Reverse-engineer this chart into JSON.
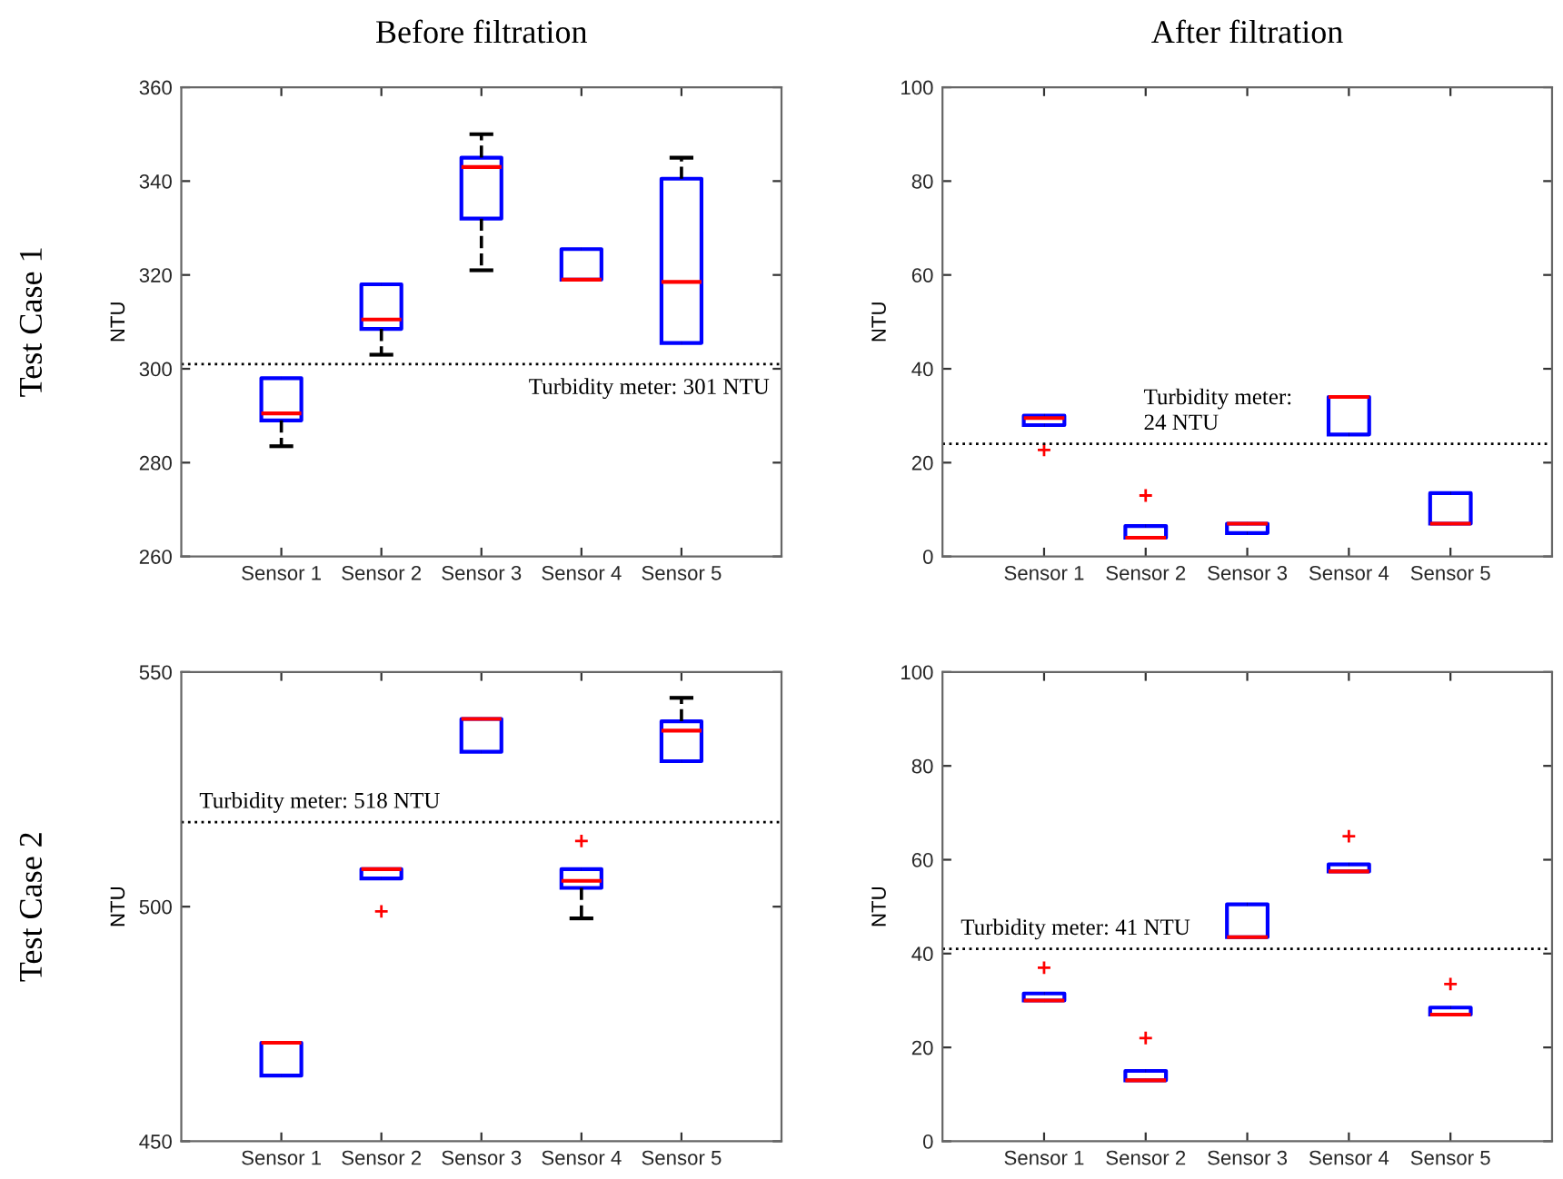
{
  "chart_data": [
    {
      "type": "box",
      "title": "Before filtration",
      "ylabel": "NTU",
      "annotations": [
        "Test Case 1"
      ],
      "categories": [
        "Sensor 1",
        "Sensor 2",
        "Sensor 3",
        "Sensor 4",
        "Sensor 5"
      ],
      "boxes": [
        {
          "low": 283.5,
          "q1": 289,
          "median": 290.5,
          "q3": 298,
          "high": 298
        },
        {
          "low": 303,
          "q1": 308.5,
          "median": 310.5,
          "q3": 318,
          "high": 318
        },
        {
          "low": 321,
          "q1": 332,
          "median": 343,
          "q3": 345,
          "high": 350
        },
        {
          "low": 319,
          "q1": 319,
          "median": 319,
          "q3": 325.5,
          "high": 325.5
        },
        {
          "low": 305.5,
          "q1": 305.5,
          "median": 318.5,
          "q3": 340.5,
          "high": 345
        }
      ],
      "ylim": [
        260,
        360
      ],
      "yticks": [
        260,
        280,
        300,
        320,
        340,
        360
      ],
      "grid": false,
      "ref_lines": [
        {
          "axis": "y",
          "value": 301,
          "label": "Turbidity meter: 301 NTU"
        }
      ]
    },
    {
      "type": "box",
      "title": "After filtration",
      "ylabel": "NTU",
      "categories": [
        "Sensor 1",
        "Sensor 2",
        "Sensor 3",
        "Sensor 4",
        "Sensor 5"
      ],
      "boxes": [
        {
          "low": 28,
          "q1": 28,
          "median": 29.5,
          "q3": 30,
          "high": 30,
          "outliers": [
            22.7
          ]
        },
        {
          "low": 4,
          "q1": 4,
          "median": 4,
          "q3": 6.5,
          "high": 6.5,
          "outliers": [
            13
          ]
        },
        {
          "low": 5,
          "q1": 5,
          "median": 7,
          "q3": 7,
          "high": 7
        },
        {
          "low": 26,
          "q1": 26,
          "median": 34,
          "q3": 34,
          "high": 34
        },
        {
          "low": 7,
          "q1": 7,
          "median": 7,
          "q3": 13.5,
          "high": 13.5
        }
      ],
      "ylim": [
        0,
        100
      ],
      "yticks": [
        0,
        20,
        40,
        60,
        80,
        100
      ],
      "grid": false,
      "ref_lines": [
        {
          "axis": "y",
          "value": 24,
          "label": "Turbidity meter:\n24 NTU"
        }
      ]
    },
    {
      "type": "box",
      "ylabel": "NTU",
      "annotations": [
        "Test Case 2"
      ],
      "categories": [
        "Sensor 1",
        "Sensor 2",
        "Sensor 3",
        "Sensor 4",
        "Sensor 5"
      ],
      "boxes": [
        {
          "low": 464,
          "q1": 464,
          "median": 471,
          "q3": 471,
          "high": 471
        },
        {
          "low": 506,
          "q1": 506,
          "median": 508,
          "q3": 508,
          "high": 508,
          "outliers": [
            499
          ]
        },
        {
          "low": 533,
          "q1": 533,
          "median": 540,
          "q3": 540,
          "high": 540
        },
        {
          "low": 497.5,
          "q1": 504,
          "median": 505.5,
          "q3": 508,
          "high": 508,
          "outliers": [
            514
          ]
        },
        {
          "low": 531,
          "q1": 531,
          "median": 537.5,
          "q3": 539.5,
          "high": 544.5
        }
      ],
      "ylim": [
        450,
        550
      ],
      "yticks": [
        450,
        500,
        550
      ],
      "grid": false,
      "ref_lines": [
        {
          "axis": "y",
          "value": 518,
          "label": "Turbidity meter: 518 NTU"
        }
      ]
    },
    {
      "type": "box",
      "ylabel": "NTU",
      "categories": [
        "Sensor 1",
        "Sensor 2",
        "Sensor 3",
        "Sensor 4",
        "Sensor 5"
      ],
      "boxes": [
        {
          "low": 30,
          "q1": 30,
          "median": 30,
          "q3": 31.5,
          "high": 31.5,
          "outliers": [
            37
          ]
        },
        {
          "low": 13,
          "q1": 13,
          "median": 13,
          "q3": 15,
          "high": 15,
          "outliers": [
            22
          ]
        },
        {
          "low": 43.5,
          "q1": 43.5,
          "median": 43.5,
          "q3": 50.5,
          "high": 50.5
        },
        {
          "low": 57.5,
          "q1": 57.5,
          "median": 57.5,
          "q3": 59,
          "high": 59,
          "outliers": [
            65
          ]
        },
        {
          "low": 27,
          "q1": 27,
          "median": 27,
          "q3": 28.5,
          "high": 28.5,
          "outliers": [
            33.5
          ]
        }
      ],
      "ylim": [
        0,
        100
      ],
      "yticks": [
        0,
        20,
        40,
        60,
        80,
        100
      ],
      "grid": false,
      "ref_lines": [
        {
          "axis": "y",
          "value": 41,
          "label": "Turbidity meter: 41 NTU"
        }
      ]
    }
  ]
}
